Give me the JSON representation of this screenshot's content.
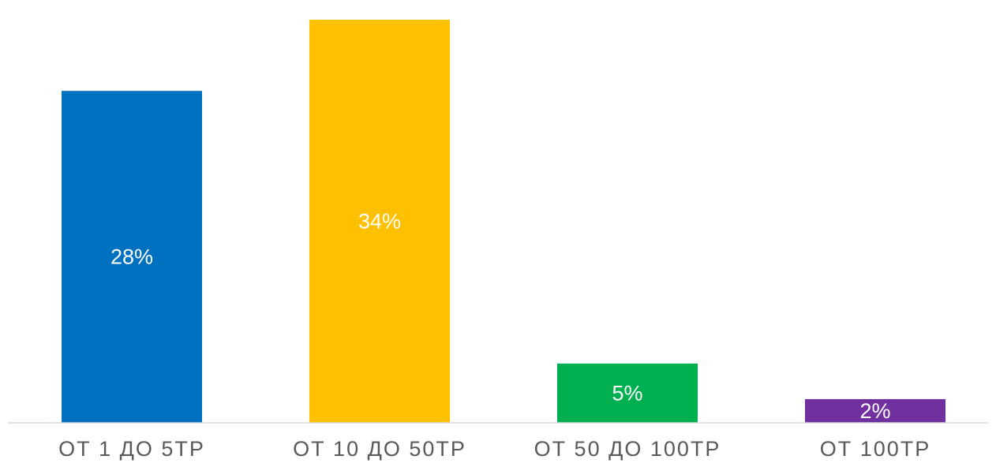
{
  "chart_data": {
    "type": "bar",
    "title": "",
    "xlabel": "",
    "ylabel": "",
    "categories": [
      "ОТ 1 ДО 5ТР",
      "ОТ 10 ДО 50ТР",
      "ОТ 50 ДО 100ТР",
      "ОТ 100ТР"
    ],
    "values": [
      28,
      34,
      5,
      2
    ],
    "data_labels": [
      "28%",
      "34%",
      "5%",
      "2%"
    ],
    "colors": [
      "#0070C0",
      "#FFC000",
      "#00B050",
      "#7030A0"
    ],
    "label_color": "#FFFFFF",
    "tick_label_color": "#595959",
    "axis_color": "#D9D9D9",
    "ylim": [
      0,
      35
    ],
    "grid": false,
    "legend": "none"
  }
}
